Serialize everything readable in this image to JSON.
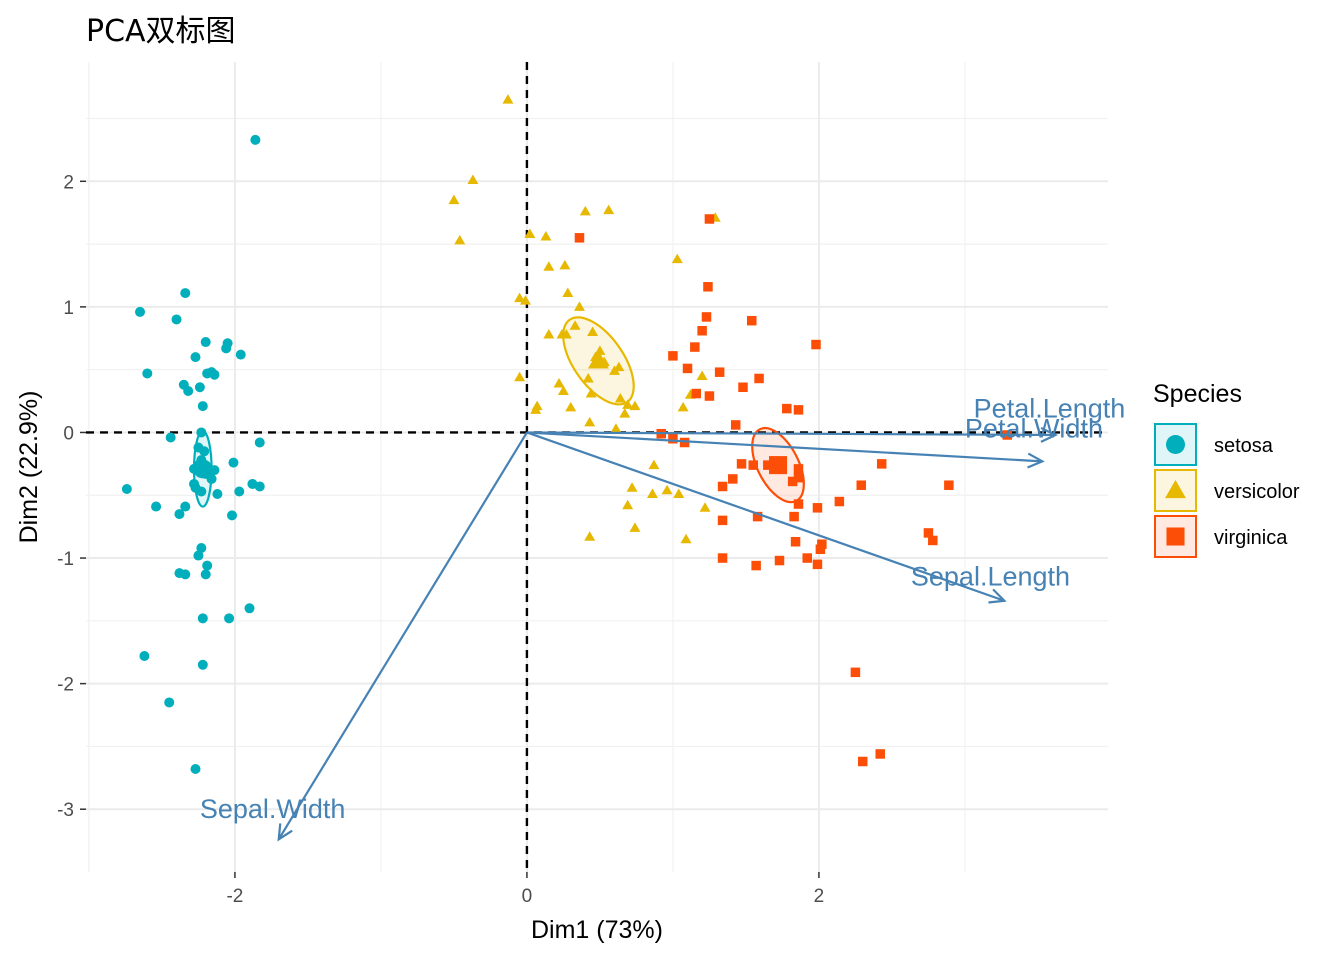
{
  "chart_data": {
    "type": "scatter",
    "title": "PCA双标图",
    "xlabel": "Dim1 (73%)",
    "ylabel": "Dim2 (22.9%)",
    "xlim": [
      -3.02,
      3.98
    ],
    "ylim": [
      -3.5,
      2.95
    ],
    "x_ticks": [
      -2,
      0,
      2
    ],
    "y_ticks": [
      2,
      1,
      0,
      -1,
      -2,
      -3
    ],
    "x_tick_labels": [
      "-2",
      "0",
      "2"
    ],
    "y_tick_labels": [
      "2",
      "1",
      "0",
      "-1",
      "-2",
      "-3"
    ],
    "grid": true,
    "legend": {
      "title": "Species",
      "position": "right",
      "entries": [
        {
          "label": "setosa",
          "color": "#00AFBB",
          "shape": "circle"
        },
        {
          "label": "versicolor",
          "color": "#E7B800",
          "shape": "triangle"
        },
        {
          "label": "virginica",
          "color": "#FC4E07",
          "shape": "square"
        }
      ]
    },
    "series": [
      {
        "name": "setosa",
        "color": "#00AFBB",
        "shape": "circle",
        "centroid": [
          -2.22,
          -0.29
        ],
        "ellipse": {
          "cx": -2.22,
          "cy": -0.29,
          "rx": 0.06,
          "ry": 0.3,
          "angle": 0
        },
        "points": [
          [
            -1.86,
            2.33
          ],
          [
            -2.34,
            1.11
          ],
          [
            -2.65,
            0.96
          ],
          [
            -2.4,
            0.9
          ],
          [
            -2.2,
            0.72
          ],
          [
            -2.05,
            0.71
          ],
          [
            -2.06,
            0.67
          ],
          [
            -2.27,
            0.6
          ],
          [
            -1.96,
            0.62
          ],
          [
            -2.6,
            0.47
          ],
          [
            -2.16,
            0.48
          ],
          [
            -2.14,
            0.46
          ],
          [
            -2.19,
            0.47
          ],
          [
            -2.35,
            0.38
          ],
          [
            -2.32,
            0.33
          ],
          [
            -2.24,
            0.36
          ],
          [
            -2.22,
            0.21
          ],
          [
            -2.44,
            -0.04
          ],
          [
            -2.23,
            0.0
          ],
          [
            -1.83,
            -0.08
          ],
          [
            -2.25,
            -0.12
          ],
          [
            -2.21,
            -0.15
          ],
          [
            -2.23,
            -0.22
          ],
          [
            -2.25,
            -0.26
          ],
          [
            -2.28,
            -0.29
          ],
          [
            -2.22,
            -0.32
          ],
          [
            -2.14,
            -0.3
          ],
          [
            -2.2,
            -0.33
          ],
          [
            -2.01,
            -0.24
          ],
          [
            -2.16,
            -0.37
          ],
          [
            -2.28,
            -0.41
          ],
          [
            -1.88,
            -0.41
          ],
          [
            -1.97,
            -0.47
          ],
          [
            -1.83,
            -0.43
          ],
          [
            -2.23,
            -0.47
          ],
          [
            -2.12,
            -0.49
          ],
          [
            -2.27,
            -0.44
          ],
          [
            -2.74,
            -0.45
          ],
          [
            -2.54,
            -0.59
          ],
          [
            -2.34,
            -0.59
          ],
          [
            -2.38,
            -0.65
          ],
          [
            -2.02,
            -0.66
          ],
          [
            -2.23,
            -0.92
          ],
          [
            -2.25,
            -0.98
          ],
          [
            -2.19,
            -1.06
          ],
          [
            -2.38,
            -1.12
          ],
          [
            -2.34,
            -1.13
          ],
          [
            -2.2,
            -1.13
          ],
          [
            -1.9,
            -1.4
          ],
          [
            -2.22,
            -1.48
          ],
          [
            -2.04,
            -1.48
          ],
          [
            -2.62,
            -1.78
          ],
          [
            -2.22,
            -1.85
          ],
          [
            -2.45,
            -2.15
          ],
          [
            -2.27,
            -2.68
          ]
        ]
      },
      {
        "name": "versicolor",
        "color": "#E7B800",
        "shape": "triangle",
        "centroid": [
          0.49,
          0.57
        ],
        "ellipse": {
          "cx": 0.49,
          "cy": 0.57,
          "rx": 0.17,
          "ry": 0.4,
          "angle": -35
        },
        "points": [
          [
            -0.13,
            2.65
          ],
          [
            -0.37,
            2.01
          ],
          [
            -0.5,
            1.85
          ],
          [
            -0.46,
            1.53
          ],
          [
            0.4,
            1.76
          ],
          [
            0.56,
            1.77
          ],
          [
            0.02,
            1.58
          ],
          [
            0.13,
            1.56
          ],
          [
            1.29,
            1.71
          ],
          [
            1.03,
            1.38
          ],
          [
            0.15,
            1.32
          ],
          [
            0.26,
            1.33
          ],
          [
            -0.05,
            1.07
          ],
          [
            -0.01,
            1.05
          ],
          [
            0.28,
            1.11
          ],
          [
            0.36,
            1.0
          ],
          [
            0.33,
            0.85
          ],
          [
            0.45,
            0.8
          ],
          [
            0.15,
            0.78
          ],
          [
            0.24,
            0.78
          ],
          [
            0.27,
            0.78
          ],
          [
            0.47,
            0.6
          ],
          [
            0.5,
            0.65
          ],
          [
            0.53,
            0.56
          ],
          [
            0.6,
            0.49
          ],
          [
            0.63,
            0.52
          ],
          [
            0.42,
            0.43
          ],
          [
            -0.05,
            0.44
          ],
          [
            0.22,
            0.39
          ],
          [
            1.2,
            0.45
          ],
          [
            0.25,
            0.33
          ],
          [
            0.44,
            0.31
          ],
          [
            0.69,
            0.22
          ],
          [
            0.64,
            0.27
          ],
          [
            0.67,
            0.15
          ],
          [
            1.12,
            0.3
          ],
          [
            0.07,
            0.21
          ],
          [
            0.06,
            0.18
          ],
          [
            0.3,
            0.2
          ],
          [
            1.07,
            0.2
          ],
          [
            0.74,
            0.21
          ],
          [
            0.43,
            0.08
          ],
          [
            0.61,
            0.03
          ],
          [
            0.87,
            -0.26
          ],
          [
            0.72,
            -0.44
          ],
          [
            0.96,
            -0.46
          ],
          [
            0.86,
            -0.49
          ],
          [
            1.04,
            -0.49
          ],
          [
            1.22,
            -0.6
          ],
          [
            0.69,
            -0.58
          ],
          [
            0.74,
            -0.76
          ],
          [
            0.43,
            -0.83
          ],
          [
            1.09,
            -0.85
          ]
        ]
      },
      {
        "name": "virginica",
        "color": "#FC4E07",
        "shape": "square",
        "centroid": [
          1.72,
          -0.26
        ],
        "ellipse": {
          "cx": 1.72,
          "cy": -0.26,
          "rx": 0.14,
          "ry": 0.32,
          "angle": -27
        },
        "points": [
          [
            1.25,
            1.7
          ],
          [
            0.36,
            1.55
          ],
          [
            1.24,
            1.16
          ],
          [
            1.23,
            0.92
          ],
          [
            1.2,
            0.81
          ],
          [
            1.54,
            0.89
          ],
          [
            1.15,
            0.68
          ],
          [
            1.0,
            0.61
          ],
          [
            1.1,
            0.51
          ],
          [
            1.98,
            0.7
          ],
          [
            1.32,
            0.48
          ],
          [
            1.59,
            0.43
          ],
          [
            1.48,
            0.36
          ],
          [
            1.16,
            0.31
          ],
          [
            1.25,
            0.29
          ],
          [
            1.78,
            0.19
          ],
          [
            1.86,
            0.18
          ],
          [
            1.43,
            0.06
          ],
          [
            0.92,
            -0.01
          ],
          [
            1.0,
            -0.05
          ],
          [
            1.08,
            -0.08
          ],
          [
            3.29,
            -0.02
          ],
          [
            1.47,
            -0.25
          ],
          [
            1.55,
            -0.26
          ],
          [
            1.65,
            -0.26
          ],
          [
            1.86,
            -0.29
          ],
          [
            2.43,
            -0.25
          ],
          [
            1.86,
            -0.36
          ],
          [
            1.41,
            -0.37
          ],
          [
            1.82,
            -0.39
          ],
          [
            2.29,
            -0.42
          ],
          [
            2.89,
            -0.42
          ],
          [
            1.34,
            -0.43
          ],
          [
            2.14,
            -0.55
          ],
          [
            1.86,
            -0.57
          ],
          [
            1.99,
            -0.6
          ],
          [
            1.34,
            -0.7
          ],
          [
            1.58,
            -0.67
          ],
          [
            1.83,
            -0.67
          ],
          [
            2.75,
            -0.8
          ],
          [
            2.78,
            -0.86
          ],
          [
            1.84,
            -0.87
          ],
          [
            2.02,
            -0.89
          ],
          [
            2.01,
            -0.93
          ],
          [
            1.34,
            -1.0
          ],
          [
            1.92,
            -1.0
          ],
          [
            1.73,
            -1.02
          ],
          [
            1.99,
            -1.05
          ],
          [
            1.57,
            -1.06
          ],
          [
            2.25,
            -1.91
          ],
          [
            2.42,
            -2.56
          ],
          [
            2.3,
            -2.62
          ]
        ]
      }
    ],
    "centroids_shown": true,
    "variables": [
      {
        "name": "Petal.Length",
        "x": 3.62,
        "y": -0.02
      },
      {
        "name": "Petal.Width",
        "x": 3.53,
        "y": -0.23
      },
      {
        "name": "Sepal.Length",
        "x": 3.27,
        "y": -1.34
      },
      {
        "name": "Sepal.Width",
        "x": -1.7,
        "y": -3.24
      }
    ],
    "reference_lines": {
      "x": 0,
      "y": 0,
      "style": "dashed"
    },
    "arrow_color": "#4682b4"
  }
}
